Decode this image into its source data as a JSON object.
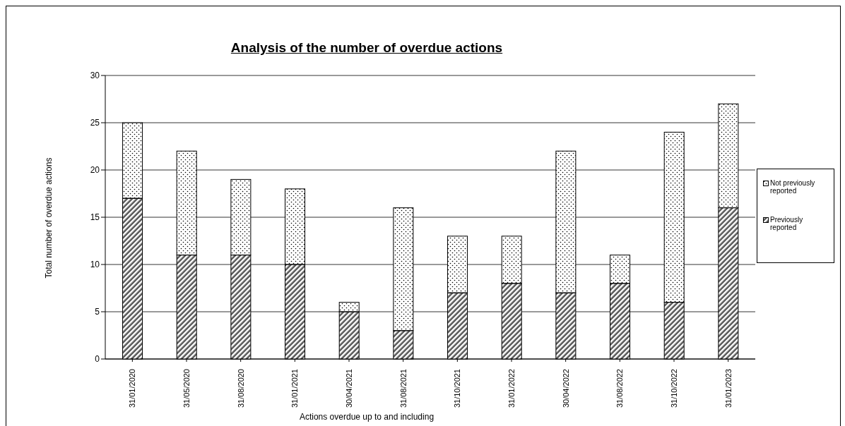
{
  "chart_data": {
    "type": "bar",
    "title": "Analysis of the number of overdue actions",
    "xlabel": "Actions overdue up to and including",
    "ylabel": "Total number of overdue actions",
    "categories": [
      "31/01/2020",
      "31/05/2020",
      "31/08/2020",
      "31/01/2021",
      "30/04/2021",
      "31/08/2021",
      "31/10/2021",
      "31/01/2022",
      "30/04/2022",
      "31/08/2022",
      "31/10/2022",
      "31/01/2023"
    ],
    "stacked": true,
    "series": [
      {
        "name": "Previously reported",
        "color": "#555555",
        "values": [
          17,
          11,
          11,
          10,
          5,
          3,
          7,
          8,
          7,
          8,
          6,
          16
        ]
      },
      {
        "name": "Not previously reported",
        "color": "#ffffff",
        "values": [
          8,
          11,
          8,
          8,
          1,
          13,
          6,
          5,
          15,
          3,
          18,
          11
        ]
      }
    ],
    "ylim": [
      0,
      30
    ],
    "yticks": [
      0,
      5,
      10,
      15,
      20,
      25,
      30
    ],
    "grid": "y",
    "legend": "right"
  }
}
